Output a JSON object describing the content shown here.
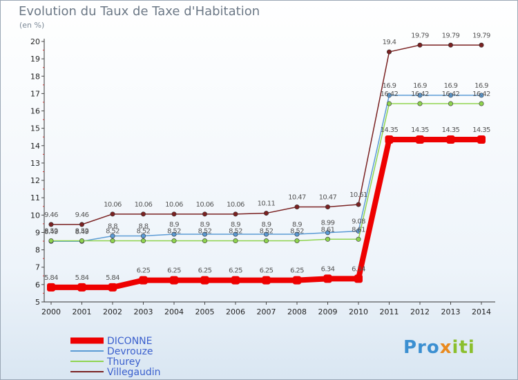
{
  "title": "Evolution du Taux de Taxe d'Habitation",
  "units_label": "(en %)",
  "logo": {
    "parts": [
      "Pro",
      "x",
      "iti"
    ],
    "colors": [
      "#3b8fd1",
      "#e98a1f",
      "#8bbf2e"
    ]
  },
  "chart_data": {
    "type": "line",
    "title": "Evolution du Taux de Taxe d'Habitation",
    "ylabel": "(en %)",
    "xlabel": "",
    "x": [
      2000,
      2001,
      2002,
      2003,
      2004,
      2005,
      2006,
      2007,
      2008,
      2009,
      2010,
      2011,
      2012,
      2013,
      2014
    ],
    "x_tick_labels": [
      "2000",
      "2001",
      "2002",
      "2003",
      "2004",
      "2005",
      "2006",
      "2007",
      "2008",
      "2009",
      "2010",
      "2011",
      "2012",
      "2013",
      "2014"
    ],
    "ylim": [
      5,
      20
    ],
    "y_ticks": [
      5,
      6,
      7,
      8,
      9,
      10,
      11,
      12,
      13,
      14,
      15,
      16,
      17,
      18,
      19,
      20
    ],
    "y_tick_labels": [
      "5",
      "6",
      "7",
      "8",
      "9",
      "10",
      "11",
      "12",
      "13",
      "14",
      "15",
      "16",
      "17",
      "18",
      "19",
      "20"
    ],
    "grid": false,
    "legend_position": "bottom-left",
    "series": [
      {
        "name": "DICONNE",
        "color": "#ee0000",
        "values": [
          5.84,
          5.84,
          5.84,
          6.25,
          6.25,
          6.25,
          6.25,
          6.25,
          6.25,
          6.34,
          6.34,
          14.35,
          14.35,
          14.35,
          14.35
        ],
        "labels": [
          "5.84",
          "5.84",
          "5.84",
          "6.25",
          "6.25",
          "6.25",
          "6.25",
          "6.25",
          "6.25",
          "6.34",
          "6.34",
          "14.35",
          "14.35",
          "14.35",
          "14.35"
        ]
      },
      {
        "name": "Devrouze",
        "color": "#5b9bd5",
        "values": [
          8.49,
          8.49,
          8.8,
          8.8,
          8.9,
          8.9,
          8.9,
          8.9,
          8.9,
          8.99,
          9.08,
          16.9,
          16.9,
          16.9,
          16.9
        ],
        "labels": [
          "8.49",
          "8.49",
          "8.8",
          "8.8",
          "8.9",
          "8.9",
          "8.9",
          "8.9",
          "8.9",
          "8.99",
          "9.08",
          "16.9",
          "16.9",
          "16.9",
          "16.9"
        ]
      },
      {
        "name": "Thurey",
        "color": "#8fd44f",
        "values": [
          8.52,
          8.52,
          8.52,
          8.52,
          8.52,
          8.52,
          8.52,
          8.52,
          8.52,
          8.61,
          8.61,
          16.42,
          16.42,
          16.42,
          16.42
        ],
        "labels": [
          "8.52",
          "8.52",
          "8.52",
          "8.52",
          "8.52",
          "8.52",
          "8.52",
          "8.52",
          "8.52",
          "8.61",
          "8.61",
          "16.42",
          "16.42",
          "16.42",
          "16.42"
        ]
      },
      {
        "name": "Villegaudin",
        "color": "#7a2121",
        "values": [
          9.46,
          9.46,
          10.06,
          10.06,
          10.06,
          10.06,
          10.06,
          10.11,
          10.47,
          10.47,
          10.61,
          19.4,
          19.79,
          19.79,
          19.79
        ],
        "labels": [
          "9.46",
          "9.46",
          "10.06",
          "10.06",
          "10.06",
          "10.06",
          "10.06",
          "10.11",
          "10.47",
          "10.47",
          "10.61",
          "19.4",
          "19.79",
          "19.79",
          "19.79"
        ]
      }
    ]
  }
}
